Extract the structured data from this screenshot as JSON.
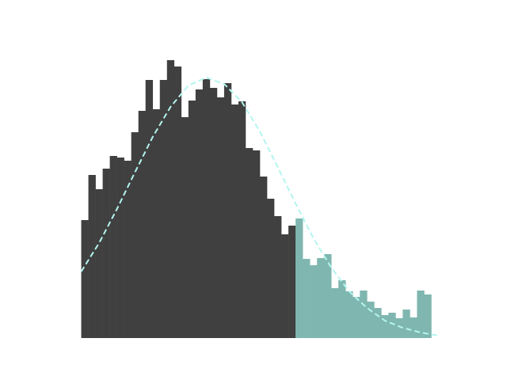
{
  "chart_data": [
    {
      "type": "histogram",
      "color": "#404040",
      "bins": [
        0,
        1,
        2,
        3,
        4,
        5,
        6,
        7,
        8,
        9,
        10,
        11,
        12,
        13,
        14,
        15,
        16,
        17,
        18,
        19,
        20,
        21,
        22,
        23,
        24,
        25,
        26,
        27,
        28,
        29,
        30
      ],
      "counts": [
        149,
        206,
        188,
        214,
        230,
        228,
        224,
        260,
        287,
        326,
        289,
        326,
        351,
        343,
        279,
        300,
        314,
        327,
        316,
        304,
        322,
        295,
        299,
        240,
        237,
        204,
        176,
        154,
        131,
        142
      ],
      "xlim": [
        -2.5,
        52.5
      ],
      "ylim": [
        0,
        369
      ]
    },
    {
      "type": "histogram",
      "color": "#7fb7b0",
      "bins": [
        30,
        31,
        32,
        33,
        34,
        35,
        36,
        37,
        38,
        39,
        40,
        41,
        42,
        43,
        44,
        45,
        46,
        47,
        48,
        49,
        50
      ],
      "counts": [
        151,
        100,
        92,
        101,
        106,
        63,
        73,
        59,
        52,
        60,
        46,
        38,
        29,
        32,
        25,
        36,
        26,
        60,
        55,
        0
      ],
      "xlim": [
        -2.5,
        52.5
      ],
      "ylim": [
        0,
        369
      ]
    },
    {
      "type": "line",
      "color": "#b3f5ee",
      "linestyle": "dashed",
      "x": [
        0,
        2.5,
        5,
        7.5,
        10,
        12.5,
        15,
        17.5,
        20,
        22.5,
        25,
        27.5,
        30,
        32.5,
        35,
        37.5,
        40,
        42.5,
        45,
        47.5,
        50
      ],
      "values": [
        84,
        120,
        163,
        209,
        254,
        292,
        319,
        329,
        321,
        298,
        261,
        216,
        170,
        126,
        89,
        59,
        38,
        22,
        13,
        7,
        3
      ],
      "xlim": [
        -2.5,
        52.5
      ],
      "ylim": [
        0,
        369
      ]
    }
  ]
}
